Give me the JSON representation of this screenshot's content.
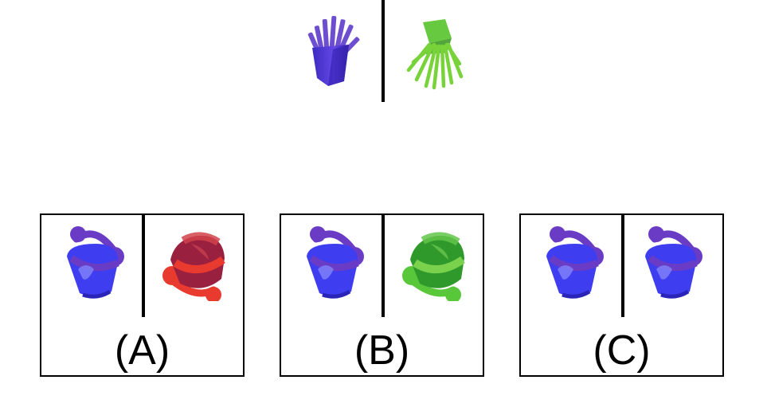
{
  "prompt": {
    "left_icon": "purple-fries-icon",
    "right_icon": "green-fries-icon"
  },
  "options": [
    {
      "label": "(A)",
      "left_icon": "blue-bucket-icon",
      "right_icon": "red-bucket-icon",
      "left_color": "#3f3df0",
      "right_color": "#d93b31"
    },
    {
      "label": "(B)",
      "left_icon": "blue-bucket-icon",
      "right_icon": "green-bucket-icon",
      "left_color": "#3f3df0",
      "right_color": "#4fbf35"
    },
    {
      "label": "(C)",
      "left_icon": "blue-bucket-icon",
      "right_icon": "blue-bucket-icon",
      "left_color": "#3f3df0",
      "right_color": "#3f3df0"
    }
  ]
}
